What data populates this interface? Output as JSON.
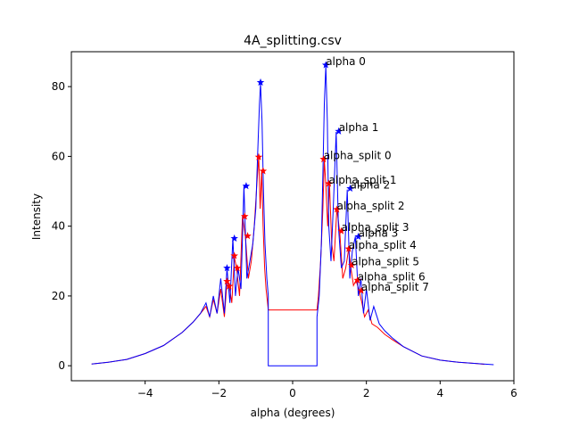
{
  "chart_data": {
    "type": "line",
    "title": "4A_splitting.csv",
    "xlabel": "alpha (degrees)",
    "ylabel": "Intensity",
    "xlim": [
      -6,
      6
    ],
    "ylim": [
      -4.3,
      90
    ],
    "xticks": [
      -4,
      -2,
      0,
      2,
      4,
      6
    ],
    "yticks": [
      0,
      20,
      40,
      60,
      80
    ],
    "grid": false,
    "colors": {
      "series_1": "#0000ff",
      "series_2": "#ff0000",
      "axis": "#000000"
    },
    "series": [
      {
        "color": "#0000ff",
        "x": [
          -5.45,
          -5.0,
          -4.5,
          -4.0,
          -3.5,
          -3.0,
          -2.7,
          -2.5,
          -2.35,
          -2.25,
          -2.15,
          -2.05,
          -1.95,
          -1.85,
          -1.78,
          -1.7,
          -1.62,
          -1.55,
          -1.48,
          -1.4,
          -1.32,
          -1.24,
          -1.16,
          -1.08,
          -1.0,
          -0.95,
          -0.9,
          -0.87,
          -0.83,
          -0.79,
          -0.75,
          -0.7,
          -0.66,
          -0.66,
          0.66,
          0.66,
          0.72,
          0.78,
          0.82,
          0.86,
          0.9,
          0.94,
          0.98,
          1.04,
          1.1,
          1.18,
          1.24,
          1.32,
          1.4,
          1.48,
          1.55,
          1.62,
          1.7,
          1.78,
          1.85,
          1.92,
          2.0,
          2.1,
          2.2,
          2.35,
          2.5,
          2.7,
          3.0,
          3.5,
          4.0,
          4.5,
          5.0,
          5.45
        ],
        "y": [
          0.5,
          1.0,
          1.8,
          3.5,
          5.8,
          9.5,
          12.5,
          15.0,
          18.0,
          14.0,
          20.0,
          15.0,
          25.0,
          15.0,
          28.0,
          18.0,
          36.5,
          20.0,
          28.0,
          22.0,
          51.5,
          25.0,
          30.0,
          35.0,
          45.0,
          60.0,
          75.0,
          81.0,
          70.0,
          50.0,
          35.0,
          25.0,
          20.0,
          0.0,
          0.0,
          14.0,
          20.0,
          35.0,
          55.0,
          75.0,
          86.0,
          70.0,
          40.0,
          30.0,
          45.0,
          67.0,
          40.0,
          28.0,
          30.0,
          50.5,
          25.0,
          33.0,
          37.0,
          20.0,
          25.0,
          15.0,
          22.0,
          13.0,
          17.0,
          12.0,
          10.0,
          8.0,
          5.5,
          2.8,
          1.6,
          1.0,
          0.6,
          0.3
        ]
      },
      {
        "color": "#ff0000",
        "x": [
          -5.45,
          -5.0,
          -4.5,
          -4.0,
          -3.5,
          -3.0,
          -2.7,
          -2.5,
          -2.35,
          -2.25,
          -2.15,
          -2.05,
          -1.95,
          -1.85,
          -1.78,
          -1.72,
          -1.65,
          -1.58,
          -1.52,
          -1.44,
          -1.36,
          -1.28,
          -1.2,
          -1.12,
          -1.04,
          -0.97,
          -0.92,
          -0.88,
          -0.84,
          -0.8,
          -0.76,
          -0.72,
          -0.68,
          -0.66,
          0.66,
          0.7,
          0.76,
          0.82,
          0.86,
          0.9,
          0.95,
          1.0,
          1.06,
          1.12,
          1.2,
          1.28,
          1.36,
          1.44,
          1.52,
          1.58,
          1.65,
          1.72,
          1.8,
          1.88,
          1.95,
          2.05,
          2.15,
          2.3,
          2.5,
          2.7,
          3.0,
          3.5,
          4.0,
          4.5,
          5.0,
          5.2
        ],
        "y": [
          0.5,
          1.0,
          1.8,
          3.5,
          5.8,
          9.5,
          12.5,
          15.0,
          17.0,
          14.0,
          19.0,
          15.0,
          22.0,
          14.0,
          24.0,
          23.0,
          18.0,
          31.0,
          28.0,
          20.0,
          43.0,
          37.0,
          25.0,
          30.0,
          40.0,
          52.0,
          60.0,
          45.0,
          56.0,
          40.0,
          28.0,
          22.0,
          18.0,
          16.0,
          16.0,
          20.0,
          30.0,
          45.0,
          59.0,
          52.0,
          40.0,
          52.0,
          35.0,
          30.0,
          45.0,
          38.0,
          25.0,
          28.0,
          33.5,
          28.0,
          23.0,
          24.5,
          21.5,
          18.0,
          14.0,
          16.0,
          12.0,
          11.0,
          9.0,
          7.5,
          5.5,
          2.8,
          1.6,
          1.0,
          0.6,
          0.4
        ]
      }
    ],
    "blue_markers": {
      "color": "#0000ff",
      "x": [
        -1.78,
        -1.58,
        -1.26,
        -0.87,
        0.9,
        1.25,
        1.56,
        1.78
      ],
      "y": [
        28.0,
        36.5,
        51.5,
        81.2,
        86.2,
        67.2,
        50.8,
        37.0
      ]
    },
    "red_markers": {
      "color": "#ff0000",
      "x": [
        -1.78,
        -1.72,
        -1.58,
        -1.5,
        -1.3,
        -1.22,
        -0.92,
        -0.8,
        0.84,
        0.98,
        1.2,
        1.32,
        1.52,
        1.6,
        1.76,
        1.86
      ],
      "y": [
        24.2,
        22.8,
        31.5,
        28.0,
        42.8,
        37.2,
        59.8,
        55.8,
        59.2,
        52.2,
        44.8,
        38.6,
        33.5,
        28.8,
        24.5,
        21.5
      ]
    },
    "annotations": [
      {
        "text": "alpha 0",
        "x": 0.9,
        "y": 86.2
      },
      {
        "text": "alpha 1",
        "x": 1.25,
        "y": 67.2
      },
      {
        "text": "alpha 2",
        "x": 1.56,
        "y": 50.8
      },
      {
        "text": "alpha 3",
        "x": 1.78,
        "y": 37.0
      },
      {
        "text": "alpha_split 0",
        "x": 0.84,
        "y": 59.2
      },
      {
        "text": "alpha_split 1",
        "x": 0.98,
        "y": 52.2
      },
      {
        "text": "alpha_split 2",
        "x": 1.2,
        "y": 44.8
      },
      {
        "text": "alpha_split 3",
        "x": 1.32,
        "y": 38.6
      },
      {
        "text": "alpha_split 4",
        "x": 1.52,
        "y": 33.5
      },
      {
        "text": "alpha_split 5",
        "x": 1.6,
        "y": 28.8
      },
      {
        "text": "alpha_split 6",
        "x": 1.76,
        "y": 24.5
      },
      {
        "text": "alpha_split 7",
        "x": 1.86,
        "y": 21.5
      }
    ]
  }
}
